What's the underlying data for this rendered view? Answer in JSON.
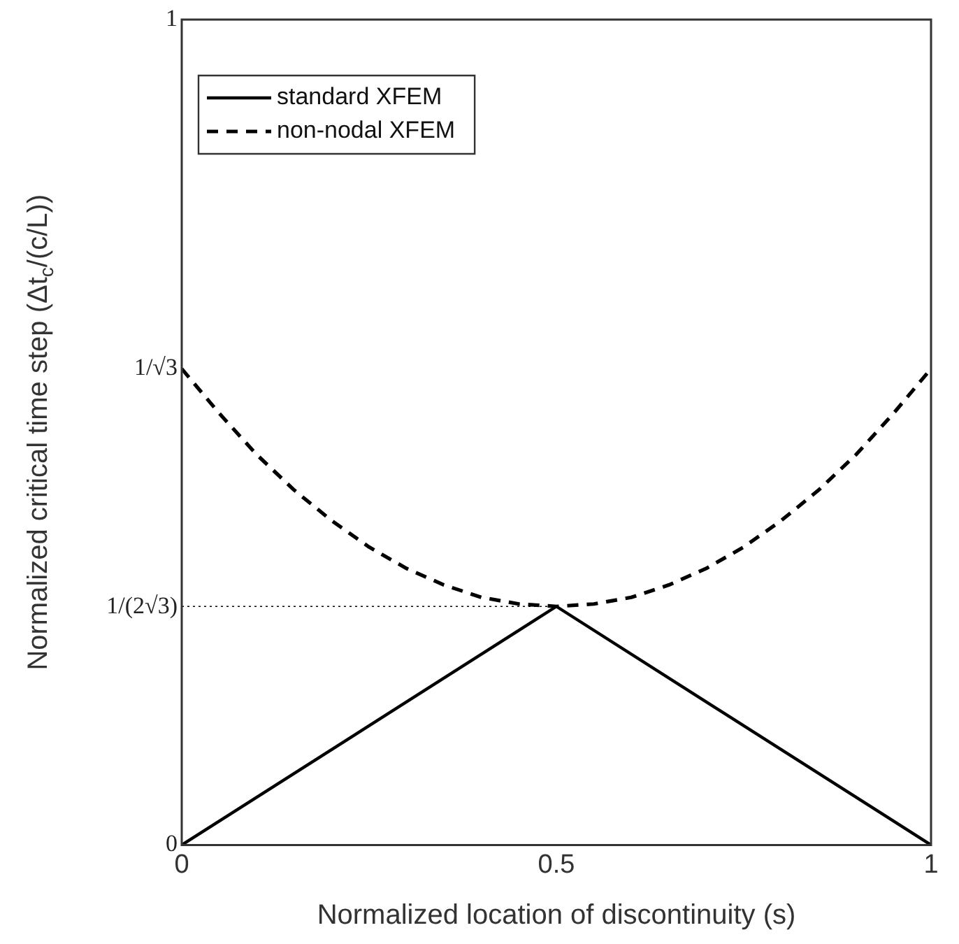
{
  "chart_data": {
    "type": "line",
    "xlabel": "Normalized location of discontinuity (s)",
    "ylabel": "Normalized critical time step (Δt$_{c}$/(c/L))",
    "xlim": [
      0,
      1
    ],
    "xticks": [
      0,
      0.5,
      1
    ],
    "ylim": [
      0,
      1
    ],
    "yticks": [
      0,
      {
        "value": 0.2887,
        "label": "1/(2√3)"
      },
      {
        "value": 0.5774,
        "label": "1/√3"
      },
      1
    ],
    "legend": "top left",
    "series": [
      {
        "name": "standard XFEM",
        "color": "#000000",
        "line_style": "solid",
        "x": [
          0,
          0.5,
          1
        ],
        "values": [
          0,
          0.289,
          0
        ]
      },
      {
        "name": "non-nodal XFEM",
        "color": "#000000",
        "line_style": "dashed",
        "x": [
          0,
          0.05,
          0.1,
          0.15,
          0.2,
          0.25,
          0.3,
          0.35,
          0.4,
          0.45,
          0.5,
          0.55,
          0.6,
          0.65,
          0.7,
          0.75,
          0.8,
          0.85,
          0.9,
          0.95,
          1
        ],
        "values": [
          0.577,
          0.523,
          0.473,
          0.43,
          0.393,
          0.361,
          0.335,
          0.315,
          0.3,
          0.292,
          0.289,
          0.292,
          0.3,
          0.315,
          0.335,
          0.361,
          0.393,
          0.43,
          0.473,
          0.523,
          0.577
        ]
      },
      {
        "color": "#000000",
        "line_style": "dotted",
        "x": [
          0,
          0.5
        ],
        "values": [
          0.289,
          0.289
        ]
      }
    ]
  }
}
